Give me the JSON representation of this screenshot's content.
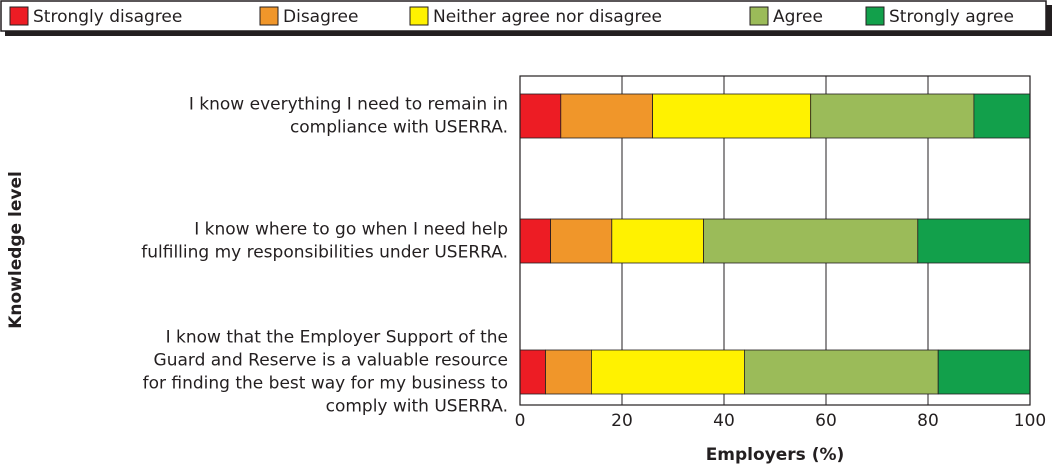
{
  "chart_data": {
    "type": "stacked-bar-horizontal",
    "categories": [
      [
        "I know everything I need to remain in",
        "compliance with USERRA."
      ],
      [
        "I know where to go when I need help",
        "fulfilling my responsibilities under USERRA."
      ],
      [
        "I know that the Employer Support of the",
        "Guard and Reserve is a valuable resource",
        "for finding the best way for my business to",
        "comply with USERRA."
      ]
    ],
    "series": [
      {
        "name": "Strongly disagree",
        "color": "#ed1c24",
        "values": [
          8,
          6,
          5
        ]
      },
      {
        "name": "Disagree",
        "color": "#f0962a",
        "values": [
          18,
          12,
          9
        ]
      },
      {
        "name": "Neither agree nor disagree",
        "color": "#fff200",
        "values": [
          31,
          18,
          30
        ]
      },
      {
        "name": "Agree",
        "color": "#9bbb59",
        "values": [
          32,
          42,
          38
        ]
      },
      {
        "name": "Strongly agree",
        "color": "#12a04b",
        "values": [
          11,
          22,
          18
        ]
      }
    ],
    "xlim": [
      0,
      100
    ],
    "xticks": [
      0,
      20,
      40,
      60,
      80,
      100
    ],
    "xlabel": "Employers (%)",
    "ylabel": "Knowledge level",
    "grid": true,
    "legend": "top"
  }
}
